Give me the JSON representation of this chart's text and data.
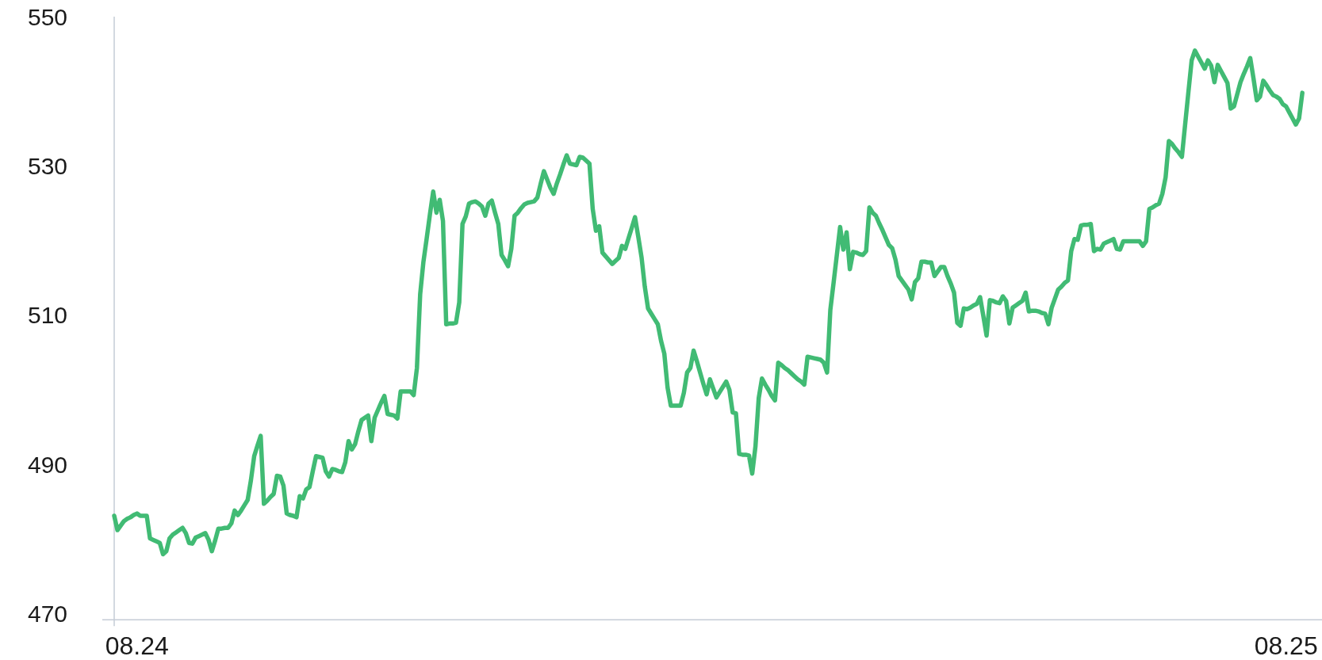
{
  "chart_data": {
    "type": "line",
    "categories": [
      null,
      null,
      null,
      null,
      null,
      null,
      null,
      "08.24",
      null,
      null,
      null,
      null,
      null,
      null,
      null,
      null,
      null,
      null,
      null,
      null,
      null,
      null,
      null,
      null,
      null,
      null,
      null,
      null,
      null,
      null,
      null,
      null,
      null,
      null,
      null,
      null,
      null,
      null,
      null,
      null,
      null,
      null,
      null,
      null,
      null,
      null,
      null,
      null,
      null,
      null,
      null,
      null,
      null,
      null,
      null,
      null,
      null,
      null,
      null,
      null,
      null,
      null,
      null,
      null,
      null,
      null,
      null,
      null,
      null,
      null,
      null,
      null,
      null,
      null,
      null,
      null,
      null,
      null,
      null,
      null,
      null,
      null,
      null,
      null,
      null,
      null,
      null,
      null,
      null,
      null,
      null,
      null,
      null,
      null,
      null,
      null,
      null,
      null,
      null,
      null,
      null,
      null,
      null,
      null,
      null,
      null,
      null,
      null,
      null,
      null,
      null,
      null,
      null,
      null,
      null,
      null,
      null,
      null,
      null,
      null,
      null,
      null,
      null,
      null,
      null,
      null,
      null,
      null,
      null,
      null,
      null,
      null,
      null,
      null,
      null,
      null,
      null,
      null,
      null,
      null,
      null,
      null,
      null,
      null,
      null,
      null,
      null,
      null,
      null,
      null,
      null,
      null,
      null,
      null,
      null,
      null,
      null,
      null,
      null,
      null,
      null,
      null,
      null,
      null,
      null,
      null,
      null,
      null,
      null,
      null,
      null,
      null,
      null,
      null,
      null,
      null,
      null,
      null,
      null,
      null,
      null,
      null,
      null,
      null,
      null,
      null,
      null,
      null,
      null,
      null,
      null,
      null,
      null,
      null,
      null,
      null,
      null,
      null,
      null,
      null,
      null,
      null,
      null,
      null,
      null,
      null,
      null,
      null,
      null,
      null,
      null,
      null,
      null,
      null,
      null,
      null,
      null,
      null,
      null,
      null,
      null,
      null,
      null,
      null,
      null,
      null,
      null,
      null,
      null,
      null,
      null,
      null,
      null,
      null,
      null,
      null,
      null,
      null,
      null,
      null,
      null,
      null,
      null,
      null,
      null,
      null,
      null,
      null,
      null,
      null,
      null,
      null,
      null,
      null,
      null,
      null,
      null,
      null,
      null,
      null,
      null,
      null,
      null,
      null,
      null,
      null,
      null,
      null,
      null,
      null,
      null,
      null,
      null,
      null,
      null,
      null,
      null,
      null,
      null,
      null,
      null,
      null,
      null,
      null,
      null,
      null,
      null,
      null,
      null,
      null,
      null,
      null,
      null,
      null,
      null,
      null,
      null,
      null,
      null,
      null,
      null,
      null,
      null,
      null,
      null,
      null,
      null,
      null,
      null,
      null,
      null,
      null,
      null,
      null,
      null,
      null,
      null,
      null,
      null,
      null,
      null,
      null,
      null,
      null,
      null,
      null,
      null,
      null,
      null,
      null,
      null,
      null,
      null,
      null,
      null,
      null,
      null,
      null,
      null,
      null,
      null,
      null,
      null,
      null,
      null,
      null,
      null,
      null,
      null,
      null,
      null,
      null,
      null,
      null,
      null,
      null,
      null,
      null,
      null,
      null,
      "08.25",
      null,
      null,
      null,
      null,
      null
    ],
    "series": [
      {
        "color": "#41bb74",
        "values": [
          483.8,
          481.9,
          482.5,
          483.1,
          483.4,
          483.6,
          483.9,
          484.1,
          483.8,
          483.8,
          483.8,
          480.8,
          480.6,
          480.4,
          480.2,
          478.7,
          479.1,
          480.8,
          481.3,
          481.6,
          481.9,
          482.2,
          481.5,
          480.2,
          480.1,
          480.9,
          481.1,
          481.3,
          481.5,
          480.6,
          479.1,
          480.5,
          482.1,
          482.1,
          482.2,
          482.2,
          482.8,
          484.5,
          483.9,
          484.5,
          485.2,
          485.9,
          488.5,
          491.7,
          493.1,
          494.4,
          485.4,
          485.8,
          486.3,
          486.7,
          489.1,
          489.0,
          487.8,
          484.1,
          483.9,
          483.8,
          483.6,
          486.4,
          486.1,
          487.3,
          487.6,
          489.7,
          491.7,
          491.6,
          491.5,
          489.7,
          489.0,
          490.0,
          489.9,
          489.7,
          489.6,
          490.9,
          493.7,
          492.6,
          493.3,
          495.0,
          496.5,
          496.8,
          497.1,
          493.7,
          496.8,
          497.8,
          498.8,
          499.7,
          497.3,
          497.2,
          497.1,
          496.7,
          500.3,
          500.3,
          500.3,
          500.3,
          499.8,
          503.4,
          513.2,
          517.5,
          520.6,
          523.8,
          526.8,
          524.0,
          525.7,
          522.9,
          509.2,
          509.3,
          509.3,
          509.4,
          512.1,
          522.5,
          523.5,
          525.2,
          525.4,
          525.5,
          525.2,
          524.8,
          523.6,
          525.2,
          525.6,
          524.0,
          522.5,
          518.4,
          517.7,
          516.9,
          519.2,
          523.6,
          524.0,
          524.6,
          525.1,
          525.3,
          525.4,
          525.5,
          526.0,
          527.8,
          529.5,
          528.4,
          527.3,
          526.5,
          527.9,
          529.1,
          530.4,
          531.6,
          530.5,
          530.4,
          530.3,
          531.4,
          531.3,
          530.9,
          530.5,
          524.5,
          521.6,
          522.2,
          518.7,
          518.2,
          517.7,
          517.2,
          517.6,
          518.0,
          519.6,
          519.2,
          520.6,
          522.0,
          523.4,
          520.8,
          518.1,
          514.2,
          511.3,
          510.6,
          509.9,
          509.2,
          507.0,
          505.3,
          500.8,
          498.4,
          498.4,
          498.4,
          498.4,
          500.1,
          502.8,
          503.4,
          505.7,
          504.3,
          502.8,
          501.3,
          499.9,
          501.9,
          500.7,
          499.5,
          500.2,
          500.9,
          501.6,
          500.5,
          497.5,
          497.4,
          492.0,
          491.9,
          491.9,
          491.8,
          489.4,
          493.0,
          499.4,
          502.0,
          501.2,
          500.5,
          499.7,
          499.1,
          504.1,
          503.8,
          503.4,
          503.1,
          502.7,
          502.3,
          501.9,
          501.6,
          501.2,
          504.9,
          504.8,
          504.7,
          504.6,
          504.5,
          504.1,
          502.8,
          511.1,
          514.7,
          518.4,
          522.1,
          519.1,
          521.4,
          516.5,
          518.8,
          518.7,
          518.5,
          518.4,
          518.9,
          524.7,
          524.0,
          523.6,
          522.6,
          521.7,
          520.7,
          519.7,
          519.3,
          517.8,
          515.6,
          515.0,
          514.4,
          513.8,
          512.5,
          514.8,
          515.3,
          517.5,
          517.5,
          517.4,
          517.4,
          515.6,
          516.2,
          516.8,
          516.8,
          515.6,
          514.6,
          513.4,
          509.4,
          509.0,
          511.3,
          511.2,
          511.4,
          511.7,
          511.9,
          512.8,
          510.3,
          507.7,
          512.4,
          512.3,
          512.1,
          512.0,
          512.9,
          512.3,
          509.3,
          511.4,
          511.7,
          512.0,
          512.3,
          513.4,
          510.9,
          511.0,
          511.0,
          510.9,
          510.7,
          510.6,
          509.2,
          511.4,
          512.6,
          513.8,
          514.2,
          514.7,
          515.0,
          518.9,
          520.5,
          520.4,
          522.3,
          522.4,
          522.4,
          522.5,
          518.9,
          519.2,
          519.1,
          519.9,
          520.1,
          520.3,
          520.5,
          519.2,
          519.1,
          520.2,
          520.2,
          520.2,
          520.2,
          520.2,
          520.2,
          519.6,
          520.2,
          524.5,
          524.7,
          525.0,
          525.2,
          526.5,
          528.7,
          533.5,
          533.1,
          532.5,
          532.0,
          531.4,
          535.7,
          540.0,
          544.2,
          545.5,
          544.7,
          543.9,
          543.1,
          544.2,
          543.5,
          541.3,
          543.6,
          542.8,
          542.0,
          541.2,
          537.8,
          538.1,
          539.7,
          541.3,
          542.4,
          543.4,
          544.5,
          541.8,
          538.9,
          539.4,
          541.5,
          540.9,
          540.2,
          539.6,
          539.4,
          539.1,
          538.4,
          538.1,
          537.3,
          536.5,
          535.7,
          536.5,
          539.9
        ]
      }
    ],
    "ylim": [
      470,
      550
    ],
    "yticks": [
      470,
      490,
      510,
      530,
      550
    ],
    "line_style": "solid"
  }
}
